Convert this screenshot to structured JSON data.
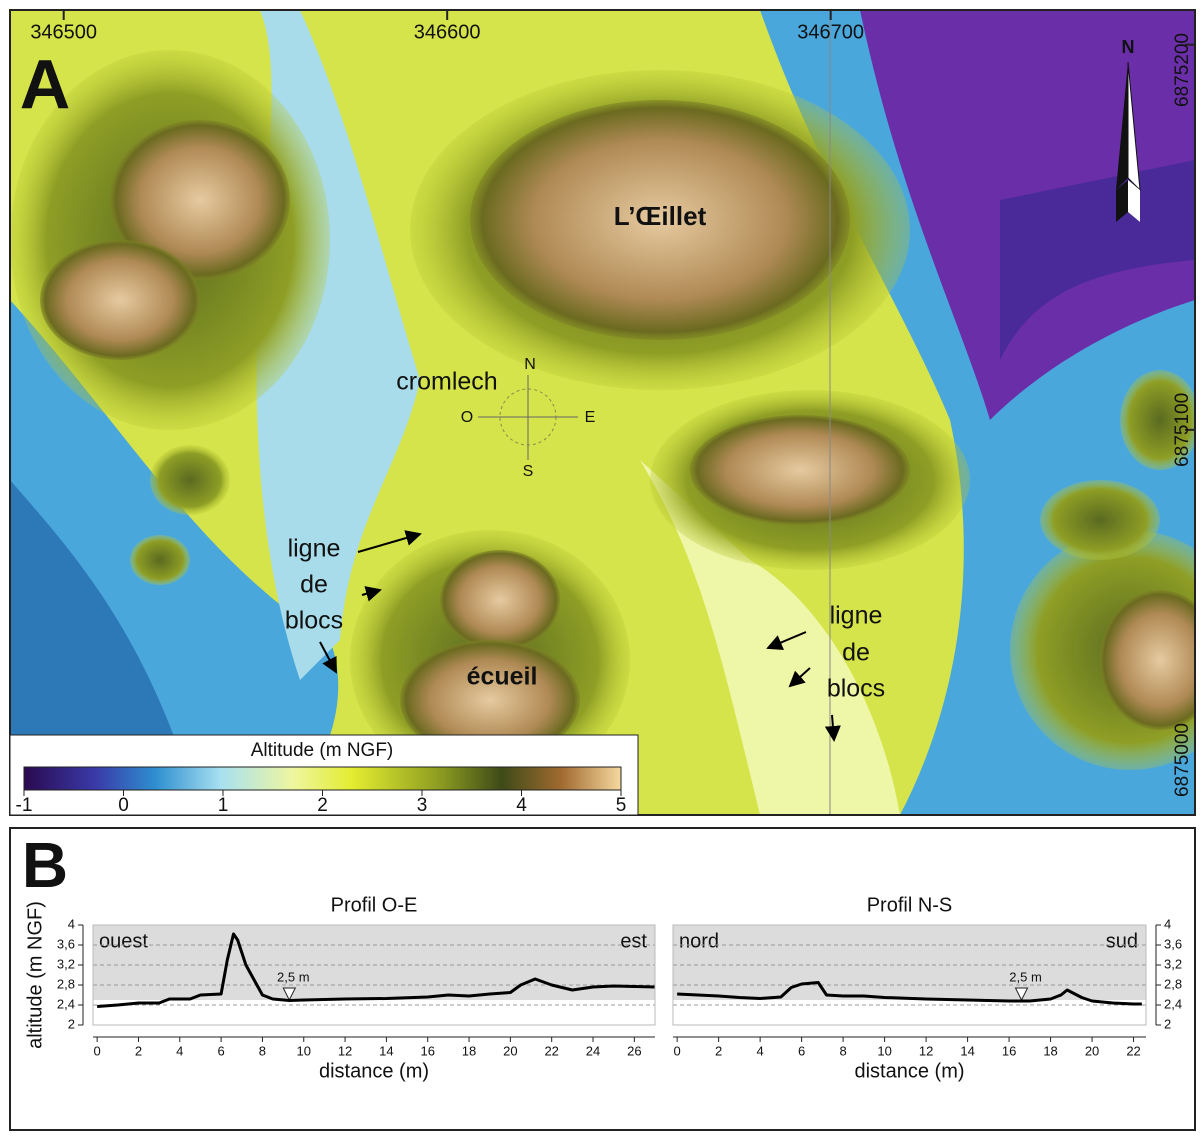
{
  "panel_a": "A",
  "panel_b": "B",
  "map": {
    "xlim": [
      346486,
      346795
    ],
    "ylim": [
      6875000,
      6875209
    ],
    "xticks": [
      346500,
      346600,
      346700
    ],
    "yticks": [
      6875000,
      6875100,
      6875200
    ],
    "places": {
      "oeillet": "L’Œillet",
      "cromlech": "cromlech",
      "ecueil": "écueil"
    },
    "ligne_left": [
      "ligne",
      "de",
      "blocs"
    ],
    "ligne_right": [
      "ligne",
      "de",
      "blocs"
    ],
    "compass": {
      "n": "N",
      "o": "O",
      "e": "E",
      "s": "S"
    },
    "north_arrow": "N",
    "colorbar": {
      "title": "Altitude (m NGF)",
      "lim": [
        -1,
        5
      ],
      "ticks": [
        -1,
        0,
        1,
        2,
        3,
        4,
        5
      ]
    }
  },
  "chart_data": [
    {
      "type": "line",
      "title": "Profil O-E",
      "xlabel": "distance (m)",
      "ylabel": "altitude (m NGF)",
      "axis_side": "left",
      "left_text": "ouest",
      "right_text": "est",
      "xlim": [
        -0.2,
        27
      ],
      "xticks": [
        0,
        2,
        4,
        6,
        8,
        10,
        12,
        14,
        16,
        18,
        20,
        22,
        24,
        26
      ],
      "ylim": [
        2,
        4
      ],
      "yticks": [
        2,
        {
          "value": 2.4,
          "label": "2,4"
        },
        {
          "value": 2.8,
          "label": "2,8"
        },
        {
          "value": 3.2,
          "label": "3,2"
        },
        {
          "value": 3.6,
          "label": "3,6"
        },
        4
      ],
      "annotation": {
        "x": 9.3,
        "value": 2.5,
        "label": "2,5 m"
      },
      "series": [
        {
          "color": "#000000",
          "x": [
            0,
            1,
            2,
            3,
            3.5,
            4.5,
            5,
            6,
            6.3,
            6.6,
            6.8,
            7.2,
            7.6,
            8,
            8.5,
            9.3,
            10,
            12,
            14,
            16,
            17,
            18,
            19,
            20,
            20.5,
            21.2,
            22,
            23,
            24,
            25,
            26,
            27
          ],
          "values": [
            2.37,
            2.4,
            2.44,
            2.44,
            2.52,
            2.52,
            2.6,
            2.62,
            3.3,
            3.82,
            3.7,
            3.2,
            2.9,
            2.6,
            2.52,
            2.49,
            2.5,
            2.52,
            2.53,
            2.56,
            2.6,
            2.58,
            2.62,
            2.65,
            2.8,
            2.92,
            2.8,
            2.7,
            2.76,
            2.78,
            2.77,
            2.76
          ]
        }
      ]
    },
    {
      "type": "line",
      "title": "Profil N-S",
      "xlabel": "distance (m)",
      "axis_side": "right",
      "left_text": "nord",
      "right_text": "sud",
      "xlim": [
        -0.2,
        22.6
      ],
      "xticks": [
        0,
        2,
        4,
        6,
        8,
        10,
        12,
        14,
        16,
        18,
        20,
        22
      ],
      "ylim": [
        2,
        4
      ],
      "yticks": [
        2,
        {
          "value": 2.4,
          "label": "2,4"
        },
        {
          "value": 2.8,
          "label": "2,8"
        },
        {
          "value": 3.2,
          "label": "3,2"
        },
        {
          "value": 3.6,
          "label": "3,6"
        },
        4
      ],
      "annotation": {
        "x": 16.6,
        "value": 2.5,
        "label": "2,5 m"
      },
      "series": [
        {
          "color": "#000000",
          "x": [
            0,
            1,
            2,
            3,
            4,
            5,
            5.5,
            6,
            6.8,
            7.2,
            8,
            9,
            10,
            12,
            14,
            16,
            17,
            18,
            18.5,
            18.8,
            19.5,
            20,
            21,
            22,
            22.4
          ],
          "values": [
            2.62,
            2.6,
            2.58,
            2.55,
            2.53,
            2.56,
            2.75,
            2.82,
            2.85,
            2.6,
            2.58,
            2.58,
            2.55,
            2.52,
            2.5,
            2.48,
            2.48,
            2.52,
            2.6,
            2.7,
            2.55,
            2.48,
            2.44,
            2.42,
            2.42
          ]
        }
      ]
    }
  ]
}
